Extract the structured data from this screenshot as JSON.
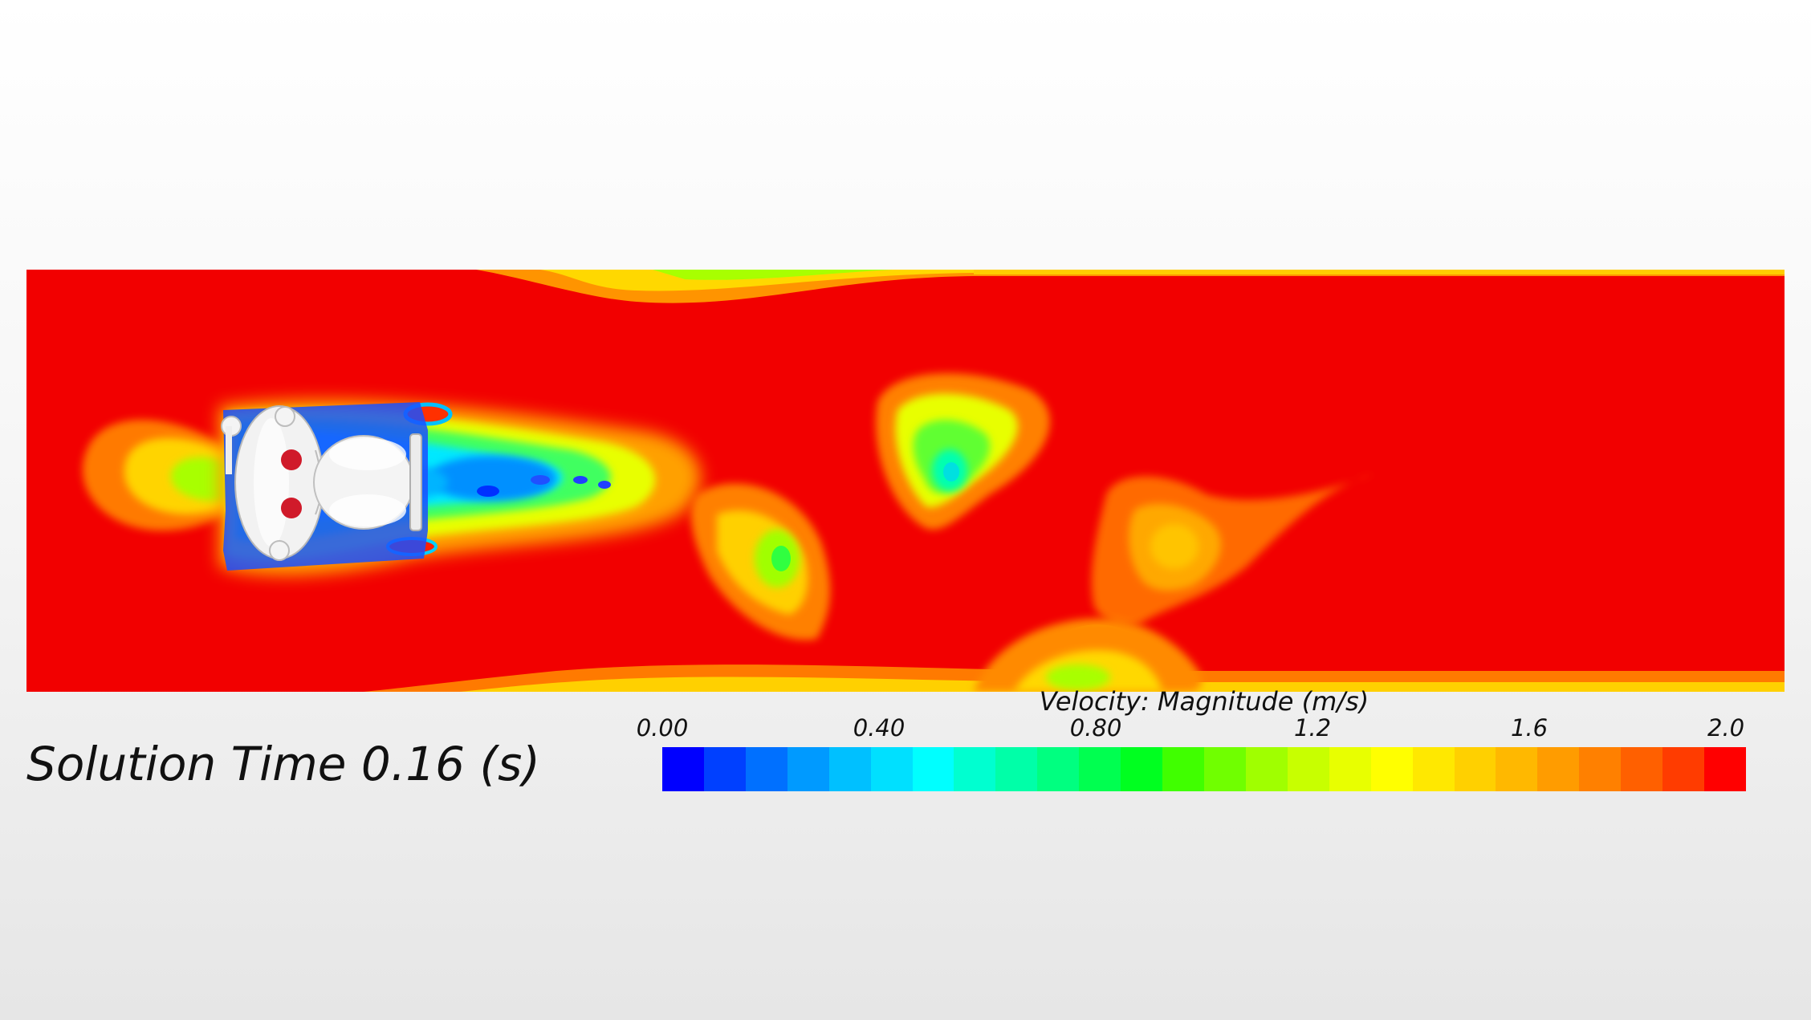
{
  "scene": {
    "solution_time_label": "Solution Time 0.16 (s)",
    "background_top": "#ffffff",
    "background_bottom": "#e6e6e6"
  },
  "colorbar": {
    "title": "Velocity: Magnitude (m/s)",
    "min": 0.0,
    "max": 2.0,
    "ticks": [
      "0.00",
      "0.40",
      "0.80",
      "1.2",
      "1.6",
      "2.0"
    ],
    "tick_values": [
      0.0,
      0.4,
      0.8,
      1.2,
      1.6,
      2.0
    ],
    "colors": [
      "#0000ff",
      "#0040ff",
      "#0070ff",
      "#009aff",
      "#00c0ff",
      "#00e0ff",
      "#00ffff",
      "#00ffd0",
      "#00ffa8",
      "#00ff80",
      "#00ff50",
      "#00ff20",
      "#40ff00",
      "#70ff00",
      "#a0ff00",
      "#c8ff00",
      "#e8ff00",
      "#ffff00",
      "#ffe800",
      "#ffd000",
      "#ffb800",
      "#ff9c00",
      "#ff8000",
      "#ff6000",
      "#ff3c00",
      "#ff0000"
    ]
  },
  "field": {
    "freestream_color": "#f20000",
    "object_icon": "white-robot-body-icon",
    "object_eye_color": "#d01a2a"
  }
}
